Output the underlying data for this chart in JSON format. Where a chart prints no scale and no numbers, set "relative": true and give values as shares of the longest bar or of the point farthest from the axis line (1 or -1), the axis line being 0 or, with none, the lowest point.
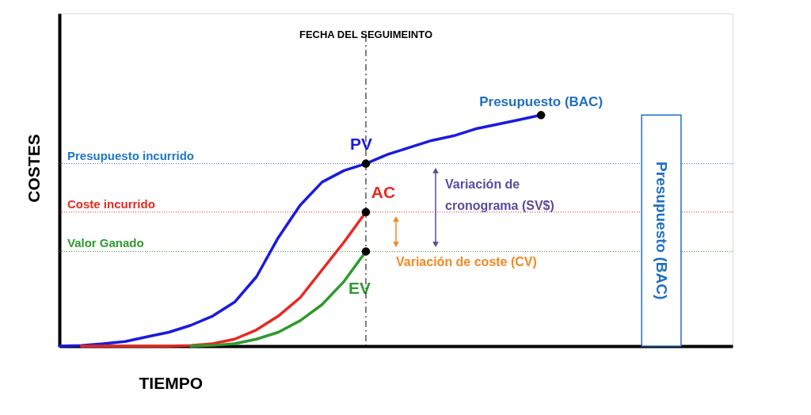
{
  "chart_data": {
    "type": "line",
    "relative": true,
    "xlabel": "TIEMPO",
    "ylabel": "COSTES",
    "tick_labels": false,
    "categories": [
      null,
      null,
      null,
      null,
      null,
      null,
      null,
      null,
      null,
      null,
      null,
      null,
      null,
      null,
      null,
      null,
      null,
      null,
      null,
      null,
      null,
      null,
      null,
      null,
      null,
      null,
      null,
      null,
      null,
      null,
      null
    ],
    "series": [
      {
        "name": "PV",
        "color": "#1a1adf",
        "values": [
          0,
          0.003,
          0.01,
          0.02,
          0.04,
          0.06,
          0.09,
          0.13,
          0.19,
          0.3,
          0.47,
          0.61,
          0.71,
          0.76,
          0.79,
          0.83,
          0.86,
          0.89,
          0.91,
          0.94,
          0.96,
          0.98,
          1,
          null,
          null,
          null,
          null,
          null,
          null,
          null,
          null
        ]
      },
      {
        "name": "AC",
        "color": "#e8281e",
        "values": [
          null,
          0,
          0,
          0,
          0,
          0,
          0.003,
          0.01,
          0.03,
          0.07,
          0.13,
          0.21,
          0.33,
          0.45,
          0.58,
          null,
          null,
          null,
          null,
          null,
          null,
          null,
          null,
          null,
          null,
          null,
          null,
          null,
          null,
          null,
          null
        ]
      },
      {
        "name": "EV",
        "color": "#2e9a2e",
        "values": [
          null,
          null,
          null,
          null,
          null,
          null,
          0,
          0.003,
          0.01,
          0.03,
          0.06,
          0.11,
          0.18,
          0.28,
          0.41,
          null,
          null,
          null,
          null,
          null,
          null,
          null,
          null,
          null,
          null,
          null,
          null,
          null,
          null,
          null,
          null
        ]
      }
    ],
    "ref_lines": [
      {
        "axis": "y",
        "value": 0.79,
        "label": "Presupuesto incurrido",
        "color": "#1f77c4",
        "line_style": "dotted"
      },
      {
        "axis": "y",
        "value": 0.58,
        "label": "Coste incurrido",
        "color": "#e8281e",
        "line_style": "dotted"
      },
      {
        "axis": "y",
        "value": 0.41,
        "label": "Valor Ganado",
        "color": "#2e9a2e",
        "line_style": "dotted"
      }
    ],
    "annotations": [
      "Presupuesto (BAC)",
      "Variación de cronograma (SV$)",
      "Variación de coste (CV)",
      "Presupuesto (BAC)",
      "FECHA DEL SEGUIMEINTO"
    ]
  }
}
